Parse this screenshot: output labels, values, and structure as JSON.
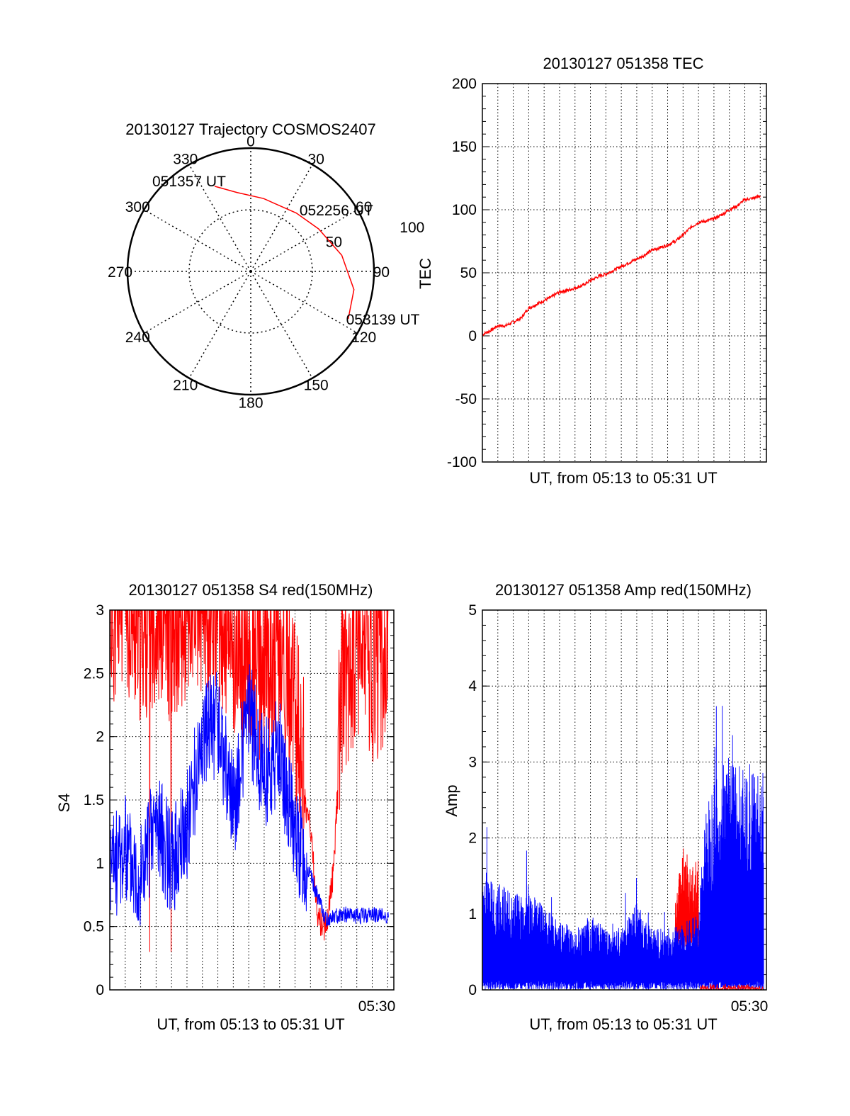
{
  "chart_data": [
    {
      "type": "polar",
      "title": "20130127 Trajectory COSMOS2407",
      "angle_labels": [
        "0",
        "30",
        "60",
        "90",
        "120",
        "150",
        "180",
        "210",
        "240",
        "270",
        "300",
        "330"
      ],
      "radial_labels": [
        "50",
        "100"
      ],
      "rlim": [
        0,
        100
      ],
      "grid": true,
      "series": [
        {
          "color": "#ff0000",
          "points": [
            {
              "azimuth": 337,
              "r": 75
            },
            {
              "azimuth": 350,
              "r": 65
            },
            {
              "azimuth": 10,
              "r": 60
            },
            {
              "azimuth": 38,
              "r": 60
            },
            {
              "azimuth": 58,
              "r": 65
            },
            {
              "azimuth": 80,
              "r": 75
            },
            {
              "azimuth": 100,
              "r": 85
            },
            {
              "azimuth": 116,
              "r": 88
            }
          ]
        }
      ],
      "annotations": [
        {
          "text": "051357 UT",
          "azimuth": 337,
          "r": 75
        },
        {
          "text": "052256 UT",
          "azimuth": 45,
          "r": 60
        },
        {
          "text": "053139 UT",
          "azimuth": 116,
          "r": 88
        }
      ]
    },
    {
      "type": "line",
      "title": "20130127 051358 TEC",
      "xlabel": "UT, from 05:13 to 05:31 UT",
      "ylabel": "TEC",
      "ylim": [
        -100,
        200
      ],
      "yticks": [
        "-100",
        "-50",
        "0",
        "50",
        "100",
        "150",
        "200"
      ],
      "xlim": [
        0,
        18.4
      ],
      "grid": true,
      "series": [
        {
          "color": "#ff0000",
          "x": [
            0,
            0.5,
            1,
            1.5,
            2,
            2.5,
            3,
            3.5,
            4,
            4.5,
            5,
            5.5,
            6,
            6.5,
            7,
            7.5,
            8,
            8.5,
            9,
            9.5,
            10,
            10.5,
            11,
            11.5,
            12,
            12.5,
            13,
            13.5,
            14,
            14.5,
            15,
            15.5,
            16,
            16.5,
            17,
            17.5,
            18
          ],
          "y": [
            1,
            4,
            8,
            8,
            11,
            14,
            22,
            25,
            28,
            31,
            35,
            36,
            38,
            40,
            44,
            47,
            49,
            52,
            55,
            58,
            61,
            64,
            68,
            70,
            72,
            75,
            80,
            86,
            90,
            91,
            93,
            96,
            100,
            103,
            108,
            109,
            111
          ]
        }
      ]
    },
    {
      "type": "line",
      "title": "20130127 051358 S4 red(150MHz)",
      "xlabel": "UT, from 05:13 to 05:31 UT",
      "ylabel": "S4",
      "ylim": [
        0,
        3
      ],
      "yticks": [
        "0",
        "0.5",
        "1",
        "1.5",
        "2",
        "2.5",
        "3"
      ],
      "xlim": [
        0,
        18.4
      ],
      "xtick_label": "05:30",
      "grid": true,
      "series": [
        {
          "color": "#ff0000",
          "x": [
            0,
            1,
            2,
            3,
            4,
            5,
            6,
            7,
            8,
            9,
            10,
            11,
            12,
            13,
            13.5,
            14,
            14.5,
            15,
            16,
            17,
            18
          ],
          "y": [
            2.6,
            2.8,
            2.5,
            2.7,
            2.5,
            2.6,
            2.8,
            2.7,
            2.4,
            2.3,
            2.2,
            2.4,
            1.9,
            1.2,
            0.5,
            0.45,
            0.9,
            2.1,
            2.4,
            2.2,
            2.3
          ]
        },
        {
          "color": "#0000ff",
          "x": [
            0,
            1,
            2,
            3,
            4,
            5,
            6,
            7,
            8,
            9,
            10,
            11,
            12,
            13,
            14,
            15,
            16,
            17,
            18
          ],
          "y": [
            0.95,
            1.1,
            0.9,
            1.35,
            1.0,
            1.3,
            2.0,
            2.1,
            1.4,
            2.2,
            1.7,
            1.9,
            1.2,
            0.9,
            0.55,
            0.6,
            0.58,
            0.6,
            0.58
          ]
        }
      ]
    },
    {
      "type": "line",
      "title": "20130127 051358 Amp red(150MHz)",
      "xlabel": "UT, from 05:13 to 05:31 UT",
      "ylabel": "Amp",
      "ylim": [
        0,
        5
      ],
      "yticks": [
        "0",
        "1",
        "2",
        "3",
        "4",
        "5"
      ],
      "xlim": [
        0,
        18.4
      ],
      "xtick_label": "05:30",
      "grid": true,
      "series": [
        {
          "color": "#ff0000",
          "x": [
            12.5,
            13,
            13.5,
            14
          ],
          "y": [
            1.0,
            1.6,
            1.4,
            1.5
          ]
        },
        {
          "color": "#0000ff",
          "x": [
            0,
            1,
            2,
            3,
            4,
            5,
            6,
            7,
            8,
            9,
            10,
            11,
            12,
            13,
            14,
            14.5,
            15,
            16,
            17,
            18
          ],
          "y": [
            1.4,
            1.25,
            1.1,
            1.1,
            1.0,
            0.8,
            0.7,
            0.85,
            0.75,
            0.7,
            1.0,
            0.7,
            0.7,
            0.75,
            0.9,
            2.2,
            2.4,
            2.7,
            2.5,
            2.5
          ]
        }
      ]
    }
  ]
}
